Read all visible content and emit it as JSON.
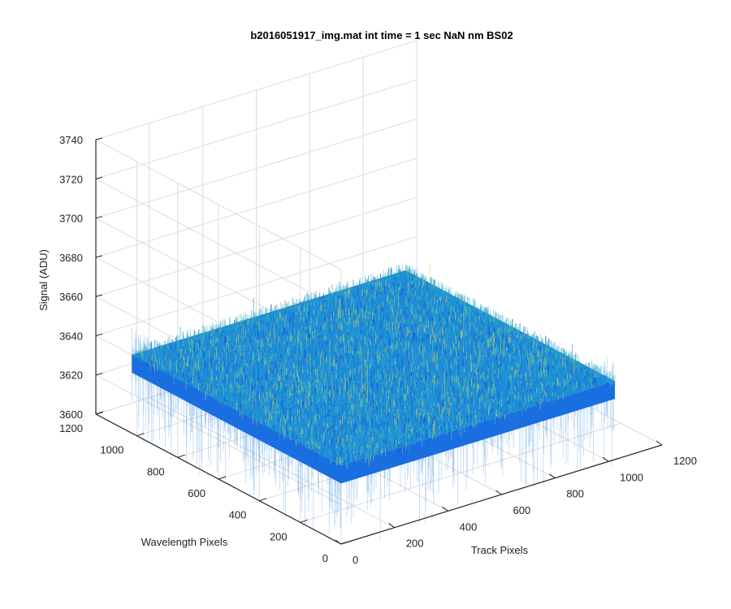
{
  "chart_data": {
    "type": "surface",
    "title": "b2016051917_img.mat int time = 1 sec  NaN nm BS02",
    "xlabel": "Track Pixels",
    "ylabel": "Wavelength Pixels",
    "zlabel": "Signal (ADU)",
    "xlim": [
      0,
      1200
    ],
    "ylim": [
      0,
      1200
    ],
    "zlim": [
      3600,
      3740
    ],
    "xticks": [
      0,
      200,
      400,
      600,
      800,
      1000,
      1200
    ],
    "yticks": [
      0,
      200,
      400,
      600,
      800,
      1000,
      1200
    ],
    "zticks": [
      3600,
      3620,
      3640,
      3660,
      3680,
      3700,
      3720,
      3740
    ],
    "data_extent": {
      "x": [
        0,
        1024
      ],
      "y": [
        0,
        1024
      ]
    },
    "signal_mean": 3640,
    "signal_range": [
      3620,
      3670
    ],
    "grid": true,
    "colormap": [
      "#0b4fd9",
      "#1a77e0",
      "#22a0d2",
      "#3bbcc0",
      "#7fd08a",
      "#e3e04a"
    ]
  }
}
